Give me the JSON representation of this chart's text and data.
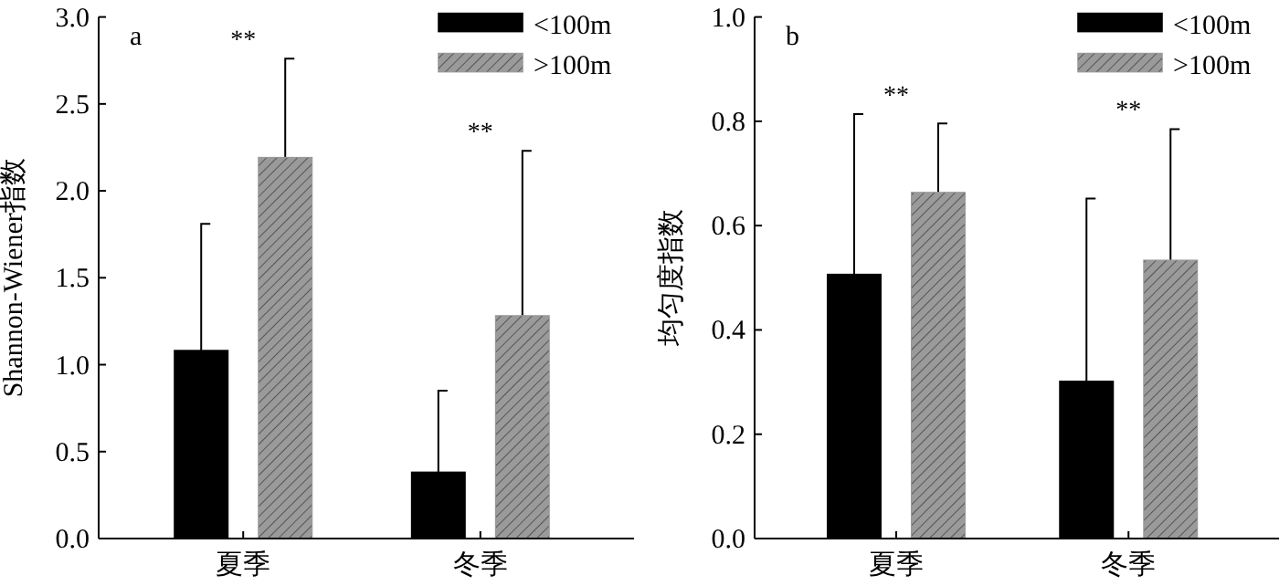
{
  "chart_data": [
    {
      "type": "bar",
      "title": "a",
      "ylabel": "Shannon-Wiener指数",
      "categories": [
        "夏季",
        "冬季"
      ],
      "series": [
        {
          "name": "<100m",
          "color": "#000000",
          "values": [
            1.08,
            0.38
          ],
          "errors": [
            [
              1.08,
              1.81
            ],
            [
              0.38,
              0.85
            ]
          ]
        },
        {
          "name": ">100m",
          "color": "#9a9a9a",
          "values": [
            2.19,
            1.28
          ],
          "errors": [
            [
              2.19,
              2.76
            ],
            [
              1.28,
              2.23
            ]
          ]
        }
      ],
      "ylim": [
        0,
        3.0
      ],
      "yticks": [
        {
          "value": 0,
          "label": "0.0"
        },
        {
          "value": 0.5,
          "label": "0.5"
        },
        {
          "value": 1,
          "label": "1.0"
        },
        {
          "value": 1.5,
          "label": "1.5"
        },
        {
          "value": 2,
          "label": "2.0"
        },
        {
          "value": 2.5,
          "label": "2.5"
        },
        {
          "value": 3,
          "label": "3.0"
        }
      ],
      "legend": "top right",
      "grid": false,
      "annotations": [
        "**",
        "**"
      ]
    },
    {
      "type": "bar",
      "title": "b",
      "ylabel": "均匀度指数",
      "categories": [
        "夏季",
        "冬季"
      ],
      "series": [
        {
          "name": "<100m",
          "color": "#000000",
          "values": [
            0.506,
            0.301
          ],
          "errors": [
            [
              0.506,
              0.814
            ],
            [
              0.301,
              0.652
            ]
          ]
        },
        {
          "name": ">100m",
          "color": "#9a9a9a",
          "values": [
            0.663,
            0.533
          ],
          "errors": [
            [
              0.663,
              0.796
            ],
            [
              0.533,
              0.785
            ]
          ]
        }
      ],
      "ylim": [
        0,
        1.0
      ],
      "yticks": [
        {
          "value": 0,
          "label": "0.0"
        },
        {
          "value": 0.2,
          "label": "0.2"
        },
        {
          "value": 0.4,
          "label": "0.4"
        },
        {
          "value": 0.6,
          "label": "0.6"
        },
        {
          "value": 0.8,
          "label": "0.8"
        },
        {
          "value": 1,
          "label": "1.0"
        }
      ],
      "legend": "top right",
      "grid": false,
      "annotations": [
        "**",
        "**"
      ]
    }
  ]
}
